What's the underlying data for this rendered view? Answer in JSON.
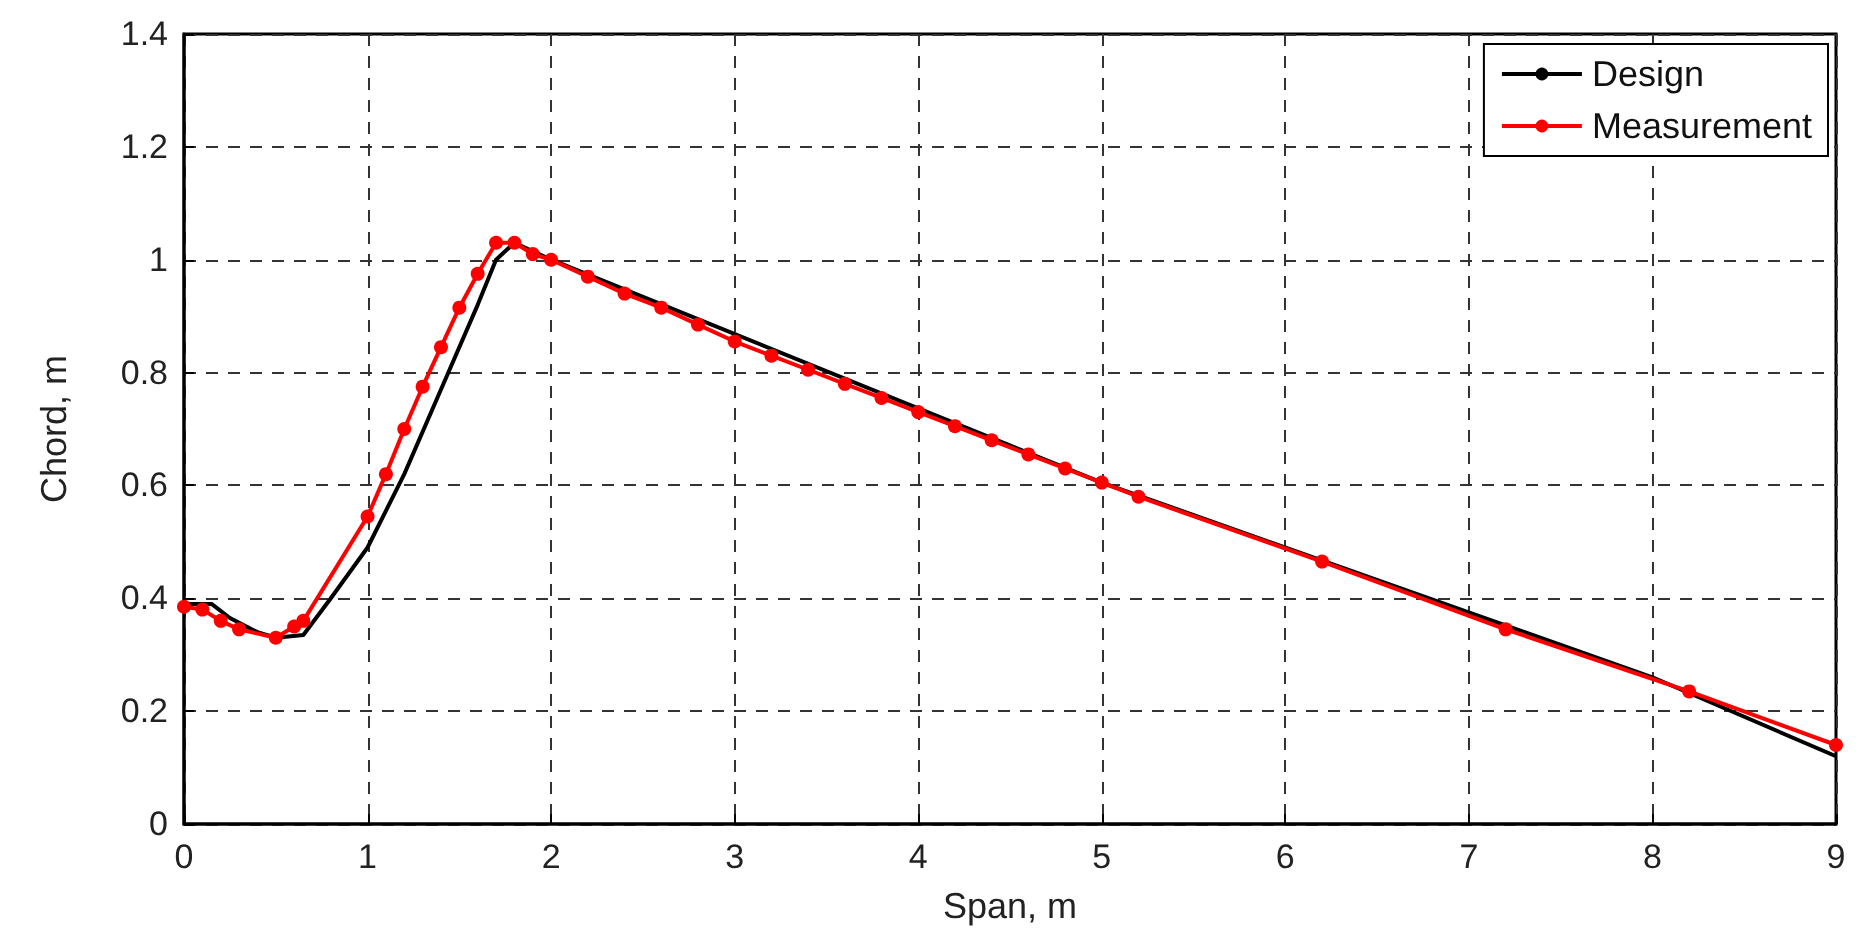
{
  "chart_data": {
    "type": "line",
    "xlabel": "Span, m",
    "ylabel": "Chord, m",
    "xlim": [
      0,
      9
    ],
    "ylim": [
      0,
      1.4
    ],
    "xticks": [
      0,
      1,
      2,
      3,
      4,
      5,
      6,
      7,
      8,
      9
    ],
    "yticks": [
      0,
      0.2,
      0.4,
      0.6,
      0.8,
      1,
      1.2,
      1.4
    ],
    "grid": true,
    "legend": "top right",
    "series": [
      {
        "name": "Design",
        "color": "#000000",
        "marker": "none",
        "x": [
          0,
          0.15,
          0.25,
          0.4,
          0.5,
          0.65,
          0.8,
          1.0,
          1.2,
          1.4,
          1.6,
          1.7,
          1.8,
          2.0,
          5,
          8,
          9
        ],
        "values": [
          0.39,
          0.39,
          0.365,
          0.34,
          0.33,
          0.335,
          0.4,
          0.49,
          0.62,
          0.77,
          0.92,
          1.0,
          1.03,
          1.0,
          0.605,
          0.26,
          0.12
        ]
      },
      {
        "name": "Measurement",
        "color": "#ff0000",
        "marker": "circle",
        "x": [
          0,
          0.1,
          0.2,
          0.3,
          0.5,
          0.6,
          0.65,
          1.0,
          1.1,
          1.2,
          1.3,
          1.4,
          1.5,
          1.6,
          1.7,
          1.8,
          1.9,
          2.0,
          2.2,
          2.4,
          2.6,
          2.8,
          3.0,
          3.2,
          3.4,
          3.6,
          3.8,
          4.0,
          4.2,
          4.4,
          4.6,
          4.8,
          5.0,
          5.2,
          6.2,
          7.2,
          8.2,
          9.0
        ],
        "values": [
          0.385,
          0.38,
          0.36,
          0.345,
          0.33,
          0.35,
          0.36,
          0.545,
          0.62,
          0.7,
          0.775,
          0.845,
          0.915,
          0.975,
          1.03,
          1.03,
          1.01,
          1.0,
          0.97,
          0.94,
          0.915,
          0.885,
          0.855,
          0.83,
          0.805,
          0.78,
          0.755,
          0.73,
          0.705,
          0.68,
          0.655,
          0.63,
          0.605,
          0.58,
          0.465,
          0.345,
          0.235,
          0.14
        ]
      }
    ]
  }
}
